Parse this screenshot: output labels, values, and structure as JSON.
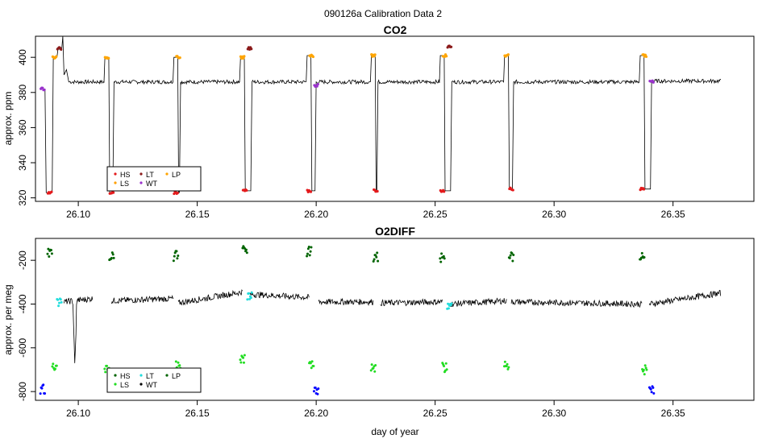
{
  "figure": {
    "title": "090126a   Calibration Data 2",
    "xlabel": "day of year"
  },
  "colors": {
    "HS": "#e41a1c",
    "LS": "#ff9f00",
    "LT": "#8b1a1a",
    "WT": "#9a32cd",
    "LP": "#ffa500",
    "O2_HS": "#006400",
    "O2_LS": "#22dd22",
    "O2_LT": "#22dddd",
    "O2_WT": "#0000ff",
    "O2_LP": "#009900",
    "trace": "#000000"
  },
  "chart_data": [
    {
      "id": "co2",
      "type": "line",
      "title": "CO2",
      "xlabel": "",
      "ylabel": "approx. ppm",
      "xlim": [
        26.082,
        26.384
      ],
      "ylim": [
        318,
        412
      ],
      "xticks": [
        26.1,
        26.15,
        26.2,
        26.25,
        26.3,
        26.35
      ],
      "xticklabels": [
        "26.10",
        "26.15",
        "26.20",
        "26.25",
        "26.30",
        "26.35"
      ],
      "yticks": [
        320,
        340,
        360,
        380,
        400
      ],
      "yticklabels": [
        "320",
        "340",
        "360",
        "380",
        "400"
      ],
      "legend": {
        "position": "bottom-left",
        "entries": [
          "HS",
          "LT",
          "LP",
          "LS",
          "WT"
        ]
      },
      "baseline": 386,
      "calibration_events": [
        {
          "x": 26.085,
          "y": 382,
          "label": "WT"
        },
        {
          "x": 26.088,
          "y": 323,
          "label": "HS"
        },
        {
          "x": 26.09,
          "y": 400,
          "label": "LP"
        },
        {
          "x": 26.092,
          "y": 405,
          "label": "LT"
        },
        {
          "x": 26.112,
          "y": 400,
          "label": "LP"
        },
        {
          "x": 26.114,
          "y": 323,
          "label": "HS"
        },
        {
          "x": 26.141,
          "y": 323,
          "label": "HS"
        },
        {
          "x": 26.142,
          "y": 400,
          "label": "LP"
        },
        {
          "x": 26.169,
          "y": 400,
          "label": "LP"
        },
        {
          "x": 26.17,
          "y": 324,
          "label": "HS"
        },
        {
          "x": 26.172,
          "y": 405,
          "label": "LT"
        },
        {
          "x": 26.197,
          "y": 324,
          "label": "HS"
        },
        {
          "x": 26.198,
          "y": 401,
          "label": "LP"
        },
        {
          "x": 26.2,
          "y": 384,
          "label": "WT"
        },
        {
          "x": 26.224,
          "y": 401,
          "label": "LP"
        },
        {
          "x": 26.225,
          "y": 324,
          "label": "HS"
        },
        {
          "x": 26.253,
          "y": 324,
          "label": "HS"
        },
        {
          "x": 26.254,
          "y": 401,
          "label": "LP"
        },
        {
          "x": 26.256,
          "y": 406,
          "label": "LT"
        },
        {
          "x": 26.28,
          "y": 401,
          "label": "LP"
        },
        {
          "x": 26.282,
          "y": 325,
          "label": "HS"
        },
        {
          "x": 26.337,
          "y": 325,
          "label": "HS"
        },
        {
          "x": 26.338,
          "y": 401,
          "label": "LP"
        },
        {
          "x": 26.341,
          "y": 386,
          "label": "WT"
        }
      ]
    },
    {
      "id": "o2diff",
      "type": "line",
      "title": "O2DIFF",
      "xlabel": "day of year",
      "ylabel": "approx. per meg",
      "xlim": [
        26.082,
        26.384
      ],
      "ylim": [
        -840,
        -100
      ],
      "xticks": [
        26.1,
        26.15,
        26.2,
        26.25,
        26.3,
        26.35
      ],
      "xticklabels": [
        "26.10",
        "26.15",
        "26.20",
        "26.25",
        "26.30",
        "26.35"
      ],
      "yticks": [
        -800,
        -600,
        -400,
        -200
      ],
      "yticklabels": [
        "-800",
        "-600",
        "-400",
        "-200"
      ],
      "legend": {
        "position": "bottom-left",
        "entries": [
          "HS",
          "LT",
          "LP",
          "LS",
          "WT"
        ]
      },
      "segments": [
        {
          "x0": 26.094,
          "x1": 26.106,
          "y0": -390,
          "y1": -375
        },
        {
          "x0": 26.114,
          "x1": 26.14,
          "y0": -385,
          "y1": -375
        },
        {
          "x0": 26.142,
          "x1": 26.169,
          "y0": -395,
          "y1": -345
        },
        {
          "x0": 26.172,
          "x1": 26.197,
          "y0": -355,
          "y1": -370
        },
        {
          "x0": 26.201,
          "x1": 26.224,
          "y0": -390,
          "y1": -390
        },
        {
          "x0": 26.227,
          "x1": 26.253,
          "y0": -395,
          "y1": -390
        },
        {
          "x0": 26.256,
          "x1": 26.28,
          "y0": -400,
          "y1": -385
        },
        {
          "x0": 26.282,
          "x1": 26.337,
          "y0": -390,
          "y1": -400
        },
        {
          "x0": 26.34,
          "x1": 26.37,
          "y0": -400,
          "y1": -350
        }
      ],
      "calibration_events": [
        {
          "x": 26.085,
          "y": -790,
          "label": "WT"
        },
        {
          "x": 26.088,
          "y": -170,
          "label": "HS"
        },
        {
          "x": 26.09,
          "y": -680,
          "label": "LS"
        },
        {
          "x": 26.092,
          "y": -395,
          "label": "LT"
        },
        {
          "x": 26.112,
          "y": -690,
          "label": "LS"
        },
        {
          "x": 26.114,
          "y": -185,
          "label": "HS"
        },
        {
          "x": 26.141,
          "y": -180,
          "label": "HS"
        },
        {
          "x": 26.142,
          "y": -680,
          "label": "LS"
        },
        {
          "x": 26.169,
          "y": -650,
          "label": "LS"
        },
        {
          "x": 26.17,
          "y": -145,
          "label": "HS"
        },
        {
          "x": 26.172,
          "y": -365,
          "label": "LT"
        },
        {
          "x": 26.197,
          "y": -160,
          "label": "HS"
        },
        {
          "x": 26.198,
          "y": -670,
          "label": "LS"
        },
        {
          "x": 26.2,
          "y": -790,
          "label": "WT"
        },
        {
          "x": 26.224,
          "y": -690,
          "label": "LS"
        },
        {
          "x": 26.225,
          "y": -185,
          "label": "HS"
        },
        {
          "x": 26.253,
          "y": -185,
          "label": "HS"
        },
        {
          "x": 26.254,
          "y": -690,
          "label": "LS"
        },
        {
          "x": 26.256,
          "y": -410,
          "label": "LT"
        },
        {
          "x": 26.28,
          "y": -680,
          "label": "LS"
        },
        {
          "x": 26.282,
          "y": -185,
          "label": "HS"
        },
        {
          "x": 26.337,
          "y": -180,
          "label": "HS"
        },
        {
          "x": 26.338,
          "y": -700,
          "label": "LS"
        },
        {
          "x": 26.341,
          "y": -790,
          "label": "WT"
        }
      ]
    }
  ]
}
